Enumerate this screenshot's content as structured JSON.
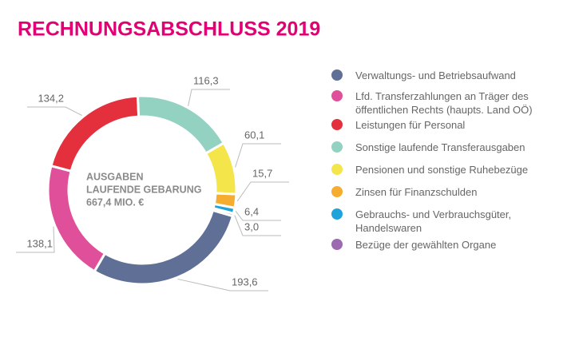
{
  "chart_data": {
    "type": "donut",
    "title": "RECHNUNGSABSCHLUSS 2019",
    "annotations": [
      "AUSGABEN",
      "LAUFENDE GEBARUNG",
      "667,4 MIO. €"
    ],
    "series": [
      {
        "name": "Verwaltungs- und Betriebsaufwand",
        "color": "#5f6f96",
        "values": [
          193.6
        ],
        "value_labels": [
          "193,6"
        ]
      },
      {
        "name": "Lfd. Transferzahlungen an Träger des öffentlichen Rechts (haupts. Land OÖ)",
        "color": "#e0509a",
        "values": [
          138.1
        ],
        "value_labels": [
          "138,1"
        ]
      },
      {
        "name": "Leistungen für Personal",
        "color": "#e3303c",
        "values": [
          134.2
        ],
        "value_labels": [
          "134,2"
        ]
      },
      {
        "name": "Sonstige laufende Transferausgaben",
        "color": "#93d1c1",
        "values": [
          116.3
        ],
        "value_labels": [
          "116,3"
        ]
      },
      {
        "name": "Pensionen und sonstige Ruhebezüge",
        "color": "#f4e54a",
        "values": [
          60.1
        ],
        "value_labels": [
          "60,1"
        ]
      },
      {
        "name": "Zinsen für Finanzschulden",
        "color": "#f6ac2e",
        "values": [
          15.7
        ],
        "value_labels": [
          "15,7"
        ]
      },
      {
        "name": "Gebrauchs- und Verbrauchsgüter, Handelswaren",
        "color": "#1ea4db",
        "values": [
          6.4
        ],
        "value_labels": [
          "6,4"
        ]
      },
      {
        "name": "Bezüge der gewählten Organe",
        "color": "#9b6ab0",
        "values": [
          3.0
        ],
        "value_labels": [
          "3,0"
        ]
      }
    ]
  }
}
